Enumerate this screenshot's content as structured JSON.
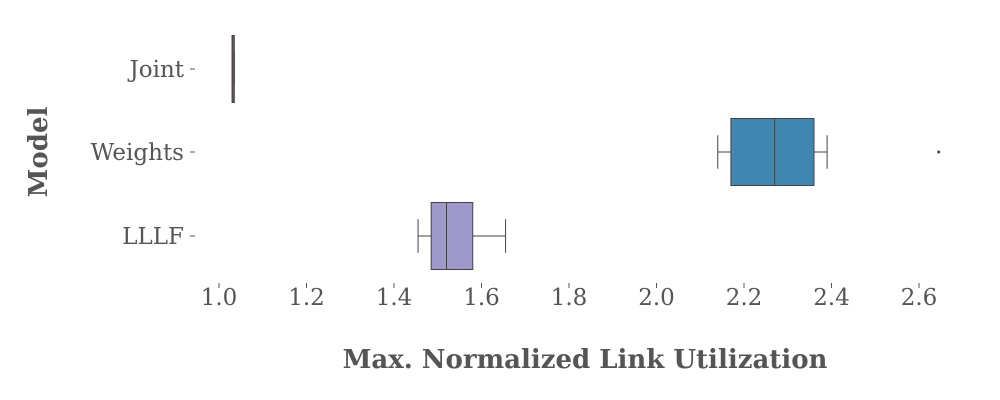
{
  "chart_data": {
    "type": "boxplot",
    "title": "",
    "xlabel": "Max. Normalized Link Utilization",
    "ylabel": "Model",
    "xlim": [
      0.95,
      2.7
    ],
    "xticks": [
      1.0,
      1.2,
      1.4,
      1.6,
      1.8,
      2.0,
      2.2,
      2.4,
      2.6
    ],
    "xtick_labels": [
      "1.0",
      "1.2",
      "1.4",
      "1.6",
      "1.8",
      "2.0",
      "2.2",
      "2.4",
      "2.6"
    ],
    "grid": false,
    "categories": [
      "Joint",
      "Weights",
      "LLLF"
    ],
    "boxes": [
      {
        "category": "Joint",
        "whisker_low": 1.03,
        "q1": 1.03,
        "median": 1.03,
        "q3": 1.035,
        "whisker_high": 1.035,
        "outliers": [],
        "color": "#7b4f64"
      },
      {
        "category": "Weights",
        "whisker_low": 2.14,
        "q1": 2.17,
        "median": 2.27,
        "q3": 2.36,
        "whisker_high": 2.39,
        "outliers": [
          2.645
        ],
        "color": "#3f86b1"
      },
      {
        "category": "LLLF",
        "whisker_low": 1.455,
        "q1": 1.485,
        "median": 1.52,
        "q3": 1.58,
        "whisker_high": 1.655,
        "outliers": [],
        "color": "#9e98cb"
      }
    ]
  }
}
